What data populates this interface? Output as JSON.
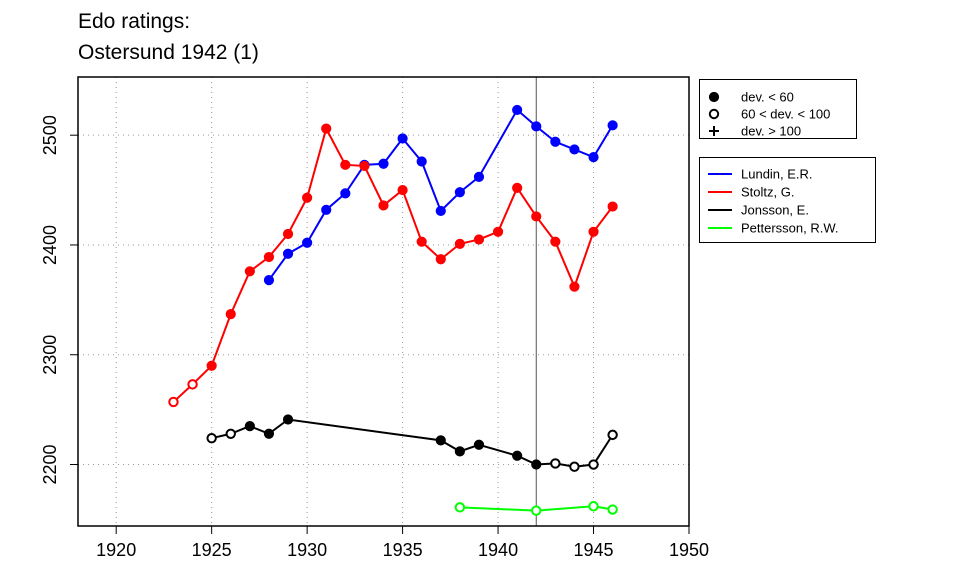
{
  "chart_data": {
    "type": "line",
    "title_lines": [
      "Edo ratings:",
      "Ostersund 1942 (1)"
    ],
    "xlabel": "",
    "ylabel": "",
    "xlim": [
      1918,
      1950
    ],
    "ylim": [
      2144,
      2553
    ],
    "x_ticks": [
      1920,
      1925,
      1930,
      1935,
      1940,
      1945,
      1950
    ],
    "y_ticks": [
      2200,
      2300,
      2400,
      2500
    ],
    "grid": true,
    "reference_year": 1942,
    "marker_legend": [
      {
        "label": "dev. < 60",
        "marker": "filled-circle"
      },
      {
        "label": "60 < dev. < 100",
        "marker": "open-circle"
      },
      {
        "label": "dev. > 100",
        "marker": "plus"
      }
    ],
    "series": [
      {
        "name": "Lundin, E.R.",
        "color": "#0000ff",
        "points": [
          {
            "x": 1928,
            "y": 2368,
            "dev": "low"
          },
          {
            "x": 1929,
            "y": 2392,
            "dev": "low"
          },
          {
            "x": 1930,
            "y": 2402,
            "dev": "low"
          },
          {
            "x": 1931,
            "y": 2432,
            "dev": "low"
          },
          {
            "x": 1932,
            "y": 2447,
            "dev": "low"
          },
          {
            "x": 1933,
            "y": 2473,
            "dev": "low"
          },
          {
            "x": 1934,
            "y": 2474,
            "dev": "low"
          },
          {
            "x": 1935,
            "y": 2497,
            "dev": "low"
          },
          {
            "x": 1936,
            "y": 2476,
            "dev": "low"
          },
          {
            "x": 1937,
            "y": 2431,
            "dev": "low"
          },
          {
            "x": 1938,
            "y": 2448,
            "dev": "low"
          },
          {
            "x": 1939,
            "y": 2462,
            "dev": "low"
          },
          {
            "x": 1941,
            "y": 2523,
            "dev": "low"
          },
          {
            "x": 1942,
            "y": 2508,
            "dev": "low"
          },
          {
            "x": 1943,
            "y": 2494,
            "dev": "low"
          },
          {
            "x": 1944,
            "y": 2487,
            "dev": "low"
          },
          {
            "x": 1945,
            "y": 2480,
            "dev": "low"
          },
          {
            "x": 1946,
            "y": 2509,
            "dev": "low"
          }
        ]
      },
      {
        "name": "Stoltz, G.",
        "color": "#ff0000",
        "points": [
          {
            "x": 1923,
            "y": 2257,
            "dev": "mid"
          },
          {
            "x": 1924,
            "y": 2273,
            "dev": "mid"
          },
          {
            "x": 1925,
            "y": 2290,
            "dev": "low"
          },
          {
            "x": 1926,
            "y": 2337,
            "dev": "low"
          },
          {
            "x": 1927,
            "y": 2376,
            "dev": "low"
          },
          {
            "x": 1928,
            "y": 2389,
            "dev": "low"
          },
          {
            "x": 1929,
            "y": 2410,
            "dev": "low"
          },
          {
            "x": 1930,
            "y": 2443,
            "dev": "low"
          },
          {
            "x": 1931,
            "y": 2506,
            "dev": "low"
          },
          {
            "x": 1932,
            "y": 2473,
            "dev": "low"
          },
          {
            "x": 1933,
            "y": 2472,
            "dev": "low"
          },
          {
            "x": 1934,
            "y": 2436,
            "dev": "low"
          },
          {
            "x": 1935,
            "y": 2450,
            "dev": "low"
          },
          {
            "x": 1936,
            "y": 2403,
            "dev": "low"
          },
          {
            "x": 1937,
            "y": 2387,
            "dev": "low"
          },
          {
            "x": 1938,
            "y": 2401,
            "dev": "low"
          },
          {
            "x": 1939,
            "y": 2405,
            "dev": "low"
          },
          {
            "x": 1940,
            "y": 2412,
            "dev": "low"
          },
          {
            "x": 1941,
            "y": 2452,
            "dev": "low"
          },
          {
            "x": 1942,
            "y": 2426,
            "dev": "low"
          },
          {
            "x": 1943,
            "y": 2403,
            "dev": "low"
          },
          {
            "x": 1944,
            "y": 2362,
            "dev": "low"
          },
          {
            "x": 1945,
            "y": 2412,
            "dev": "low"
          },
          {
            "x": 1946,
            "y": 2435,
            "dev": "low"
          }
        ]
      },
      {
        "name": "Jonsson, E.",
        "color": "#000000",
        "points": [
          {
            "x": 1925,
            "y": 2224,
            "dev": "mid"
          },
          {
            "x": 1926,
            "y": 2228,
            "dev": "mid"
          },
          {
            "x": 1927,
            "y": 2235,
            "dev": "low"
          },
          {
            "x": 1928,
            "y": 2228,
            "dev": "low"
          },
          {
            "x": 1929,
            "y": 2241,
            "dev": "low"
          },
          {
            "x": 1937,
            "y": 2222,
            "dev": "low"
          },
          {
            "x": 1938,
            "y": 2212,
            "dev": "low"
          },
          {
            "x": 1939,
            "y": 2218,
            "dev": "low"
          },
          {
            "x": 1941,
            "y": 2208,
            "dev": "low"
          },
          {
            "x": 1942,
            "y": 2200,
            "dev": "low"
          },
          {
            "x": 1943,
            "y": 2201,
            "dev": "mid"
          },
          {
            "x": 1944,
            "y": 2198,
            "dev": "mid"
          },
          {
            "x": 1945,
            "y": 2200,
            "dev": "mid"
          },
          {
            "x": 1946,
            "y": 2227,
            "dev": "mid"
          }
        ]
      },
      {
        "name": "Pettersson, R.W.",
        "color": "#00ff00",
        "points": [
          {
            "x": 1938,
            "y": 2161,
            "dev": "mid"
          },
          {
            "x": 1942,
            "y": 2158,
            "dev": "mid"
          },
          {
            "x": 1945,
            "y": 2162,
            "dev": "mid"
          },
          {
            "x": 1946,
            "y": 2159,
            "dev": "mid"
          }
        ]
      }
    ]
  }
}
